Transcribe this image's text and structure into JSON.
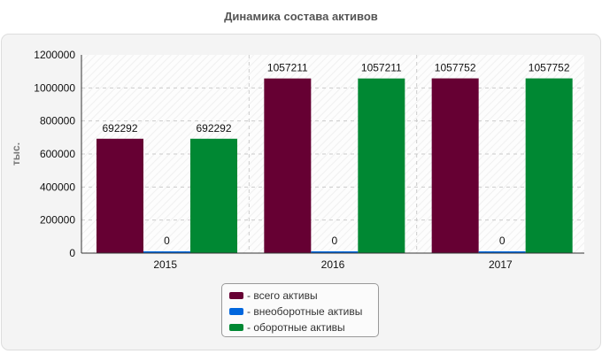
{
  "chart_data": {
    "type": "bar",
    "title": "Динамика состава активов",
    "ylabel": "тыс.",
    "xlabel": "",
    "categories": [
      "2015",
      "2016",
      "2017"
    ],
    "ylim": [
      0,
      1200000
    ],
    "yticks": [
      "0",
      "200000",
      "400000",
      "600000",
      "800000",
      "1000000",
      "1200000"
    ],
    "grid": true,
    "legend_position": "bottom-center",
    "series": [
      {
        "name": "- всего активы",
        "color": "#660033",
        "values": [
          692292,
          1057211,
          1057752
        ],
        "labels": [
          "692292",
          "1057211",
          "1057752"
        ]
      },
      {
        "name": "- внеоборотные активы",
        "color": "#0066dd",
        "values": [
          0,
          0,
          0
        ],
        "labels": [
          "0",
          "0",
          "0"
        ]
      },
      {
        "name": "- оборотные активы",
        "color": "#008833",
        "values": [
          692292,
          1057211,
          1057752
        ],
        "labels": [
          "692292",
          "1057211",
          "1057752"
        ]
      }
    ]
  }
}
